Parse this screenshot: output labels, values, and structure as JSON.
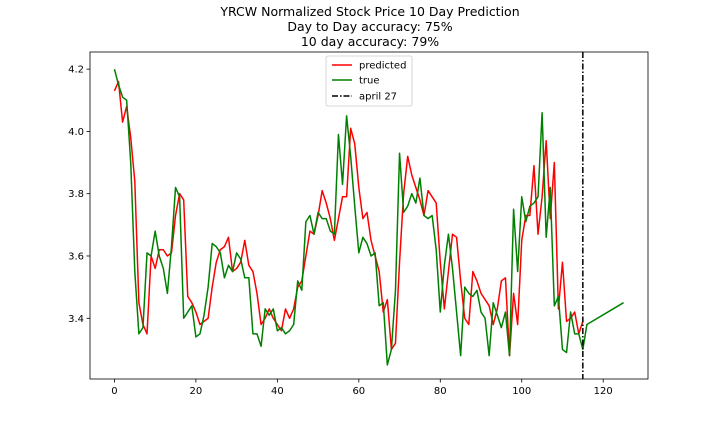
{
  "chart_data": {
    "type": "line",
    "title_lines": [
      "YRCW Normalized Stock Price 10 Day Prediction",
      "Day to Day accuracy: 75%",
      "10 day accuracy: 79%"
    ],
    "xlabel": "",
    "ylabel": "",
    "xlim": [
      -6,
      131
    ],
    "ylim": [
      3.205,
      4.255
    ],
    "x_ticks": [
      0,
      20,
      40,
      60,
      80,
      100,
      120
    ],
    "y_ticks": [
      3.4,
      3.6,
      3.8,
      4.0,
      4.2
    ],
    "y_tick_format": "1",
    "grid": false,
    "legend_position": "top-center",
    "series": [
      {
        "name": "predicted",
        "color": "#ff0000",
        "x": [
          0,
          1,
          2,
          3,
          4,
          5,
          6,
          7,
          8,
          9,
          10,
          11,
          12,
          13,
          14,
          15,
          16,
          17,
          18,
          19,
          20,
          21,
          22,
          23,
          24,
          25,
          26,
          27,
          28,
          29,
          30,
          31,
          32,
          33,
          34,
          35,
          36,
          37,
          38,
          39,
          40,
          41,
          42,
          43,
          44,
          45,
          46,
          47,
          48,
          49,
          50,
          51,
          52,
          53,
          54,
          55,
          56,
          57,
          58,
          59,
          60,
          61,
          62,
          63,
          64,
          65,
          66,
          67,
          68,
          69,
          70,
          71,
          72,
          73,
          74,
          75,
          76,
          77,
          78,
          79,
          80,
          81,
          82,
          83,
          84,
          85,
          86,
          87,
          88,
          89,
          90,
          91,
          92,
          93,
          94,
          95,
          96,
          97,
          98,
          99,
          100,
          101,
          102,
          103,
          104,
          105,
          106,
          107,
          108,
          109,
          110,
          111,
          112,
          113,
          114,
          115
        ],
        "values": [
          4.13,
          4.16,
          4.03,
          4.08,
          3.98,
          3.84,
          3.45,
          3.38,
          3.35,
          3.6,
          3.56,
          3.62,
          3.62,
          3.6,
          3.61,
          3.73,
          3.8,
          3.78,
          3.47,
          3.45,
          3.42,
          3.38,
          3.39,
          3.4,
          3.5,
          3.58,
          3.62,
          3.63,
          3.66,
          3.55,
          3.56,
          3.58,
          3.65,
          3.57,
          3.55,
          3.48,
          3.38,
          3.4,
          3.43,
          3.4,
          3.38,
          3.36,
          3.43,
          3.4,
          3.43,
          3.5,
          3.52,
          3.6,
          3.68,
          3.67,
          3.73,
          3.81,
          3.77,
          3.72,
          3.65,
          3.72,
          3.79,
          3.79,
          4.01,
          3.96,
          3.82,
          3.72,
          3.74,
          3.65,
          3.6,
          3.55,
          3.42,
          3.46,
          3.3,
          3.32,
          3.58,
          3.8,
          3.92,
          3.86,
          3.82,
          3.78,
          3.73,
          3.81,
          3.79,
          3.77,
          3.58,
          3.43,
          3.55,
          3.67,
          3.66,
          3.52,
          3.4,
          3.38,
          3.55,
          3.52,
          3.48,
          3.46,
          3.44,
          3.38,
          3.43,
          3.52,
          3.53,
          3.28,
          3.48,
          3.38,
          3.65,
          3.73,
          3.73,
          3.89,
          3.67,
          3.79,
          3.97,
          3.72,
          3.9,
          3.43,
          3.58,
          3.39,
          3.4,
          3.42,
          3.35,
          3.39
        ]
      },
      {
        "name": "true",
        "color": "#008000",
        "x": [
          0,
          1,
          2,
          3,
          4,
          5,
          6,
          7,
          8,
          9,
          10,
          11,
          12,
          13,
          14,
          15,
          16,
          17,
          18,
          19,
          20,
          21,
          22,
          23,
          24,
          25,
          26,
          27,
          28,
          29,
          30,
          31,
          32,
          33,
          34,
          35,
          36,
          37,
          38,
          39,
          40,
          41,
          42,
          43,
          44,
          45,
          46,
          47,
          48,
          49,
          50,
          51,
          52,
          53,
          54,
          55,
          56,
          57,
          58,
          59,
          60,
          61,
          62,
          63,
          64,
          65,
          66,
          67,
          68,
          69,
          70,
          71,
          72,
          73,
          74,
          75,
          76,
          77,
          78,
          79,
          80,
          81,
          82,
          83,
          84,
          85,
          86,
          87,
          88,
          89,
          90,
          91,
          92,
          93,
          94,
          95,
          96,
          97,
          98,
          99,
          100,
          101,
          102,
          103,
          104,
          105,
          106,
          107,
          108,
          109,
          110,
          111,
          112,
          113,
          114,
          115,
          116,
          125
        ],
        "values": [
          4.2,
          4.15,
          4.11,
          4.1,
          3.9,
          3.55,
          3.35,
          3.37,
          3.61,
          3.6,
          3.68,
          3.6,
          3.56,
          3.48,
          3.63,
          3.82,
          3.79,
          3.4,
          3.42,
          3.44,
          3.34,
          3.35,
          3.41,
          3.5,
          3.64,
          3.63,
          3.61,
          3.53,
          3.57,
          3.55,
          3.61,
          3.59,
          3.53,
          3.53,
          3.35,
          3.35,
          3.31,
          3.43,
          3.41,
          3.43,
          3.36,
          3.37,
          3.35,
          3.36,
          3.38,
          3.52,
          3.49,
          3.71,
          3.73,
          3.67,
          3.74,
          3.72,
          3.72,
          3.68,
          3.67,
          3.99,
          3.83,
          4.05,
          3.92,
          3.76,
          3.61,
          3.66,
          3.64,
          3.6,
          3.61,
          3.44,
          3.45,
          3.25,
          3.3,
          3.49,
          3.93,
          3.74,
          3.76,
          3.8,
          3.77,
          3.85,
          3.73,
          3.72,
          3.73,
          3.62,
          3.42,
          3.57,
          3.67,
          3.56,
          3.42,
          3.28,
          3.5,
          3.48,
          3.47,
          3.49,
          3.42,
          3.4,
          3.28,
          3.45,
          3.41,
          3.37,
          3.42,
          3.28,
          3.75,
          3.55,
          3.79,
          3.71,
          3.76,
          3.77,
          3.79,
          4.06,
          3.66,
          3.82,
          3.44,
          3.47,
          3.3,
          3.29,
          3.42,
          3.35,
          3.35,
          3.3,
          3.38,
          3.45
        ]
      }
    ],
    "reference_line": {
      "name": "april 27",
      "x": 115,
      "style": "dash-dot",
      "color": "#000000"
    }
  }
}
